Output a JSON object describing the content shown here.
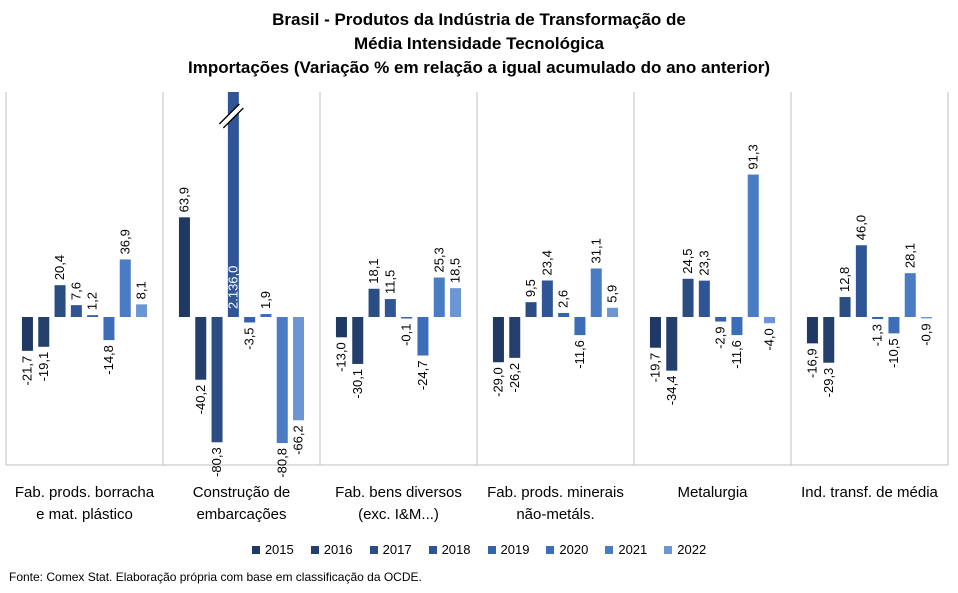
{
  "chart_data": {
    "type": "bar",
    "title": [
      "Brasil - Produtos da Indústria de Transformação de",
      "Média Intensidade Tecnológica",
      "Importações (Variação % em relação a igual acumulado do ano anterior)"
    ],
    "categories": [
      [
        "Fab. prods. borracha",
        "e mat. plástico"
      ],
      [
        "Construção de",
        "embarcações"
      ],
      [
        "Fab. bens diversos",
        "(exc. I&M...)"
      ],
      [
        "Fab. prods. minerais",
        "não-metáls."
      ],
      [
        "Metalurgia"
      ],
      [
        "Ind. transf. de média"
      ]
    ],
    "series": [
      {
        "name": "2015",
        "color": "#1f3864",
        "values": [
          -21.7,
          63.9,
          -13.0,
          -29.0,
          -19.7,
          -16.9
        ]
      },
      {
        "name": "2016",
        "color": "#243f6b",
        "values": [
          -19.1,
          -40.2,
          -30.1,
          -26.2,
          -34.4,
          -29.3
        ]
      },
      {
        "name": "2017",
        "color": "#2a4d82",
        "values": [
          20.4,
          -80.3,
          18.1,
          9.5,
          24.5,
          12.8
        ]
      },
      {
        "name": "2018",
        "color": "#2f5597",
        "values": [
          7.6,
          2136.0,
          11.5,
          23.4,
          23.3,
          46.0
        ]
      },
      {
        "name": "2019",
        "color": "#3562a8",
        "values": [
          1.2,
          -3.5,
          -0.1,
          2.6,
          -2.9,
          -1.3
        ]
      },
      {
        "name": "2020",
        "color": "#3c6eb8",
        "values": [
          -14.8,
          1.9,
          -24.7,
          -11.6,
          -11.6,
          -10.5
        ]
      },
      {
        "name": "2021",
        "color": "#4a7cc4",
        "values": [
          36.9,
          -80.8,
          25.3,
          31.1,
          91.3,
          28.1
        ]
      },
      {
        "name": "2022",
        "color": "#6b96d3",
        "values": [
          8.1,
          -66.2,
          18.5,
          5.9,
          -4.0,
          -0.9
        ]
      }
    ],
    "value_labels": [
      [
        "-21,7",
        "63,9",
        "-13,0",
        "-29,0",
        "-19,7",
        "-16,9"
      ],
      [
        "-19,1",
        "-40,2",
        "-30,1",
        "-26,2",
        "-34,4",
        "-29,3"
      ],
      [
        "20,4",
        "-80,3",
        "18,1",
        "9,5",
        "24,5",
        "12,8"
      ],
      [
        "7,6",
        "2.136,0",
        "11,5",
        "23,4",
        "23,3",
        "46,0"
      ],
      [
        "1,2",
        "-3,5",
        "-0,1",
        "2,6",
        "-2,9",
        "-1,3"
      ],
      [
        "-14,8",
        "1,9",
        "-24,7",
        "-11,6",
        "-11,6",
        "-10,5"
      ],
      [
        "36,9",
        "-80,8",
        "25,3",
        "31,1",
        "91,3",
        "28,1"
      ],
      [
        "8,1",
        "-66,2",
        "18,5",
        "5,9",
        "-4,0",
        "-0,9"
      ]
    ],
    "ylim": [
      -95,
      150
    ],
    "axis_break": {
      "category": 1,
      "series": 3
    },
    "legend_position": "bottom",
    "grid": false
  },
  "source": "Fonte: Comex Stat. Elaboração própria com base em classificação da OCDE."
}
